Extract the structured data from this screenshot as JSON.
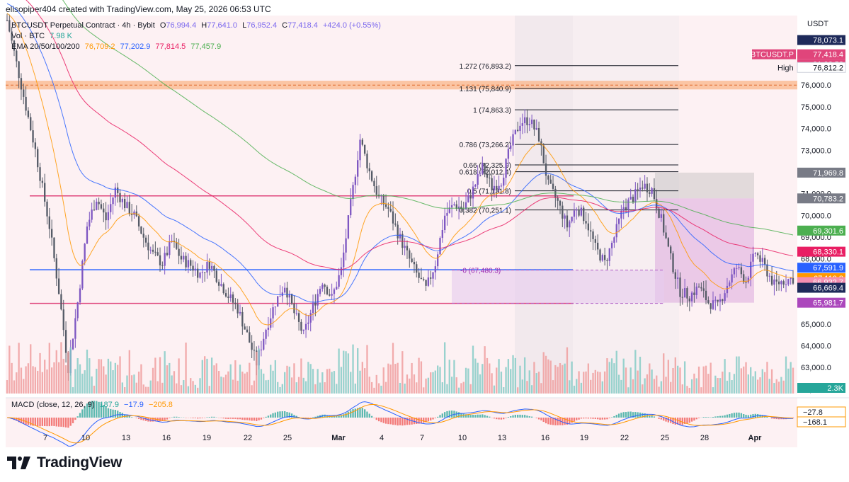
{
  "header": {
    "created_by": "elisopiper404 created with TradingView.com, May 25, 2026 06:53 UTC"
  },
  "legend": {
    "symbol": "BTCUSDT Perpetual Contract · 4h · Bybit",
    "o_label": "O",
    "o_value": "76,994.4",
    "h_label": "H",
    "h_value": "77,641.0",
    "l_label": "L",
    "l_value": "76,952.4",
    "c_label": "C",
    "c_value": "77,418.4",
    "change": "+424.0 (+0.55%)",
    "vol_label": "Vol · BTC",
    "vol_value": "7.98 K",
    "ema_label": "EMA 20/50/100/200",
    "ema20": "76,709.2",
    "ema50": "77,202.9",
    "ema100": "77,814.5",
    "ema200": "77,457.9",
    "macd_label": "MACD (close, 12, 26, 9)",
    "macd_hist": "187.9",
    "macd_line": "−17.9",
    "macd_signal": "−205.8"
  },
  "footer": {
    "brand": "TradingView"
  },
  "price_axis": {
    "currency": "USDT",
    "ticks": [
      "76,000.0",
      "75,000.0",
      "74,000.0",
      "73,000.0",
      "72,000.0",
      "71,000.0",
      "70,000.0",
      "69,000.0",
      "68,000.0",
      "67,000.0",
      "66,000.0",
      "65,000.0",
      "64,000.0",
      "63,000.0",
      "62,000.0"
    ],
    "tags": [
      {
        "text": "78,073.1",
        "color": "#1e2a5a",
        "price": 78073.1
      },
      {
        "text": "BTCUSDT.P",
        "color": "#e0457b",
        "price": 77418.4,
        "side": "left"
      },
      {
        "text": "77,418.4",
        "color": "#e0457b",
        "price": 77418.4
      },
      {
        "text": "01:06:58",
        "color": "#e0457b",
        "price": 77418.4,
        "offset": 1
      },
      {
        "text": "76,812.2",
        "color": "#ffffff",
        "price": 76812.2,
        "label": "High",
        "textColor": "#131722"
      },
      {
        "text": "71,969.8",
        "color": "#787b86",
        "price": 71969.8
      },
      {
        "text": "70,783.2",
        "color": "#787b86",
        "price": 70783.2
      },
      {
        "text": "69,301.6",
        "color": "#4caf50",
        "price": 69301.6,
        "textColor": "#ffffff"
      },
      {
        "text": "68,330.1",
        "color": "#e91e63",
        "price": 68330.1
      },
      {
        "text": "67,591.9",
        "color": "#2962ff",
        "price": 67591.9
      },
      {
        "text": "67,110.8",
        "color": "#ff9800",
        "price": 67110.8
      },
      {
        "text": "66,932.7",
        "color": "#f48fb1",
        "price": 66932.7
      },
      {
        "text": "66,669.4",
        "color": "#1e2a5a",
        "price": 66669.4
      },
      {
        "text": "65,981.7",
        "color": "#ab47bc",
        "price": 65981.7
      },
      {
        "text": "2.3K",
        "color": "#26a69a",
        "price": null
      }
    ],
    "macd_tags": [
      {
        "text": "−27.8",
        "color": "#ff9800"
      },
      {
        "text": "−168.1",
        "color": "#ff9800"
      }
    ]
  },
  "time_axis": {
    "labels": [
      "7",
      "10",
      "13",
      "16",
      "19",
      "22",
      "25",
      "Mar",
      "4",
      "7",
      "10",
      "13",
      "16",
      "19",
      "22",
      "25",
      "28",
      "Apr"
    ]
  },
  "fib_levels": [
    {
      "text": "1.272 (76,893.2)",
      "price": 76893.2
    },
    {
      "text": "1.131 (75,840.9)",
      "price": 75840.9
    },
    {
      "text": "1 (74,863.3)",
      "price": 74863.3
    },
    {
      "text": "0.786 (73,266.2)",
      "price": 73266.2
    },
    {
      "text": "0.66 (72,325.9)",
      "price": 72325.9
    },
    {
      "text": "0.618 (72,012.4)",
      "price": 72012.4
    },
    {
      "text": "0.5 (71,131.8)",
      "price": 71131.8
    },
    {
      "text": "0.382 (70,251.1)",
      "price": 70251.1
    },
    {
      "text": "0 (67,480.3)",
      "price": 67480.3
    }
  ],
  "chart_data": {
    "type": "candlestick",
    "title": "BTCUSDT Perpetual Contract · 4h · Bybit",
    "xlabel": "",
    "ylabel": "",
    "ylim": [
      61800,
      79200
    ],
    "x_ticks": [
      "7",
      "10",
      "13",
      "16",
      "19",
      "22",
      "25",
      "Mar",
      "4",
      "7",
      "10",
      "13",
      "16",
      "19",
      "22",
      "25",
      "28",
      "Apr"
    ],
    "horizontal_lines": [
      {
        "price": 70900,
        "color": "#e0457b"
      },
      {
        "price": 67500,
        "color": "#2962ff"
      },
      {
        "price": 65950,
        "color": "#e0457b"
      },
      {
        "price": 76000,
        "color": "#f57c00",
        "style": "dashed"
      }
    ],
    "resistance_zone": [
      75800,
      76200
    ],
    "anchor_path": [
      [
        0,
        79000
      ],
      [
        6,
        76000
      ],
      [
        12,
        73000
      ],
      [
        18,
        69500
      ],
      [
        22,
        66500
      ],
      [
        26,
        63000
      ],
      [
        30,
        66000
      ],
      [
        34,
        69500
      ],
      [
        38,
        70800
      ],
      [
        42,
        69800
      ],
      [
        46,
        71200
      ],
      [
        50,
        70500
      ],
      [
        54,
        70000
      ],
      [
        58,
        69000
      ],
      [
        62,
        68200
      ],
      [
        66,
        67800
      ],
      [
        70,
        68800
      ],
      [
        74,
        68000
      ],
      [
        78,
        67700
      ],
      [
        82,
        67300
      ],
      [
        86,
        67800
      ],
      [
        90,
        67000
      ],
      [
        94,
        66300
      ],
      [
        98,
        65700
      ],
      [
        102,
        64500
      ],
      [
        106,
        63200
      ],
      [
        110,
        64800
      ],
      [
        114,
        66000
      ],
      [
        118,
        66800
      ],
      [
        122,
        65500
      ],
      [
        126,
        64500
      ],
      [
        130,
        65800
      ],
      [
        134,
        67000
      ],
      [
        138,
        66200
      ],
      [
        142,
        67500
      ],
      [
        146,
        70500
      ],
      [
        150,
        73500
      ],
      [
        154,
        72000
      ],
      [
        158,
        70800
      ],
      [
        162,
        70300
      ],
      [
        166,
        69200
      ],
      [
        170,
        68200
      ],
      [
        174,
        67300
      ],
      [
        178,
        66600
      ],
      [
        182,
        67800
      ],
      [
        186,
        70000
      ],
      [
        190,
        70500
      ],
      [
        194,
        70300
      ],
      [
        198,
        71200
      ],
      [
        202,
        72200
      ],
      [
        206,
        71300
      ],
      [
        210,
        71600
      ],
      [
        214,
        73200
      ],
      [
        218,
        74300
      ],
      [
        222,
        74400
      ],
      [
        226,
        73600
      ],
      [
        230,
        71400
      ],
      [
        234,
        70600
      ],
      [
        238,
        69500
      ],
      [
        242,
        70400
      ],
      [
        246,
        69800
      ],
      [
        250,
        68500
      ],
      [
        254,
        67800
      ],
      [
        258,
        69000
      ],
      [
        262,
        70400
      ],
      [
        266,
        70800
      ],
      [
        270,
        71400
      ],
      [
        274,
        71200
      ],
      [
        278,
        69800
      ],
      [
        282,
        68000
      ],
      [
        286,
        66500
      ],
      [
        290,
        66300
      ],
      [
        294,
        66700
      ],
      [
        298,
        66000
      ],
      [
        302,
        65800
      ],
      [
        306,
        66800
      ],
      [
        310,
        67600
      ],
      [
        314,
        67000
      ],
      [
        318,
        68300
      ],
      [
        322,
        67600
      ],
      [
        326,
        66800
      ],
      [
        330,
        67000
      ],
      [
        334,
        67100
      ]
    ],
    "ema20": "76,709.2",
    "ema50": "77,202.9",
    "ema100": "77,814.5",
    "ema200": "77,457.9",
    "volume_max_btc": 7.98,
    "macd": {
      "hist": "187.9",
      "macd": "−17.9",
      "signal": "−205.8"
    }
  }
}
